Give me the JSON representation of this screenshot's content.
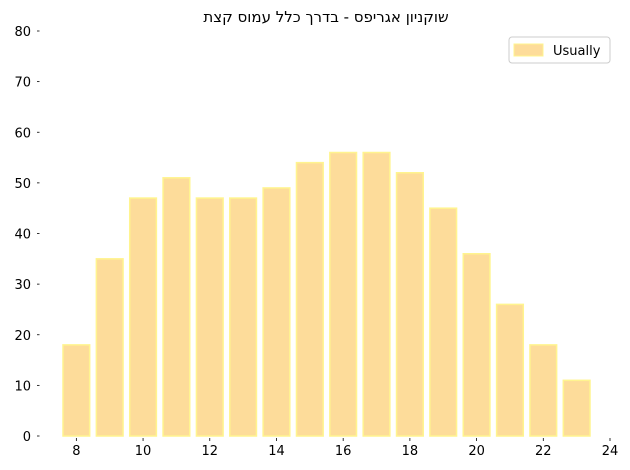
{
  "chart_data": {
    "type": "bar",
    "title": "שוקניון אגריפס  - בדרך כלל עמוס קצת",
    "xlabel": "",
    "ylabel": "",
    "x": [
      8,
      9,
      10,
      11,
      12,
      13,
      14,
      15,
      16,
      17,
      18,
      19,
      20,
      21,
      22,
      23
    ],
    "series": [
      {
        "name": "Usually",
        "values": [
          18,
          35,
          47,
          51,
          47,
          47,
          49,
          54,
          56,
          56,
          52,
          45,
          36,
          26,
          18,
          11
        ]
      }
    ],
    "xlim": [
      7,
      24
    ],
    "ylim": [
      0,
      80
    ],
    "x_ticks": [
      8,
      10,
      12,
      14,
      16,
      18,
      20,
      22,
      24
    ],
    "y_ticks": [
      0,
      10,
      20,
      30,
      40,
      50,
      60,
      70,
      80
    ],
    "legend_position": "top-right",
    "grid": false,
    "colors": {
      "bar_fill": "#fddc9a",
      "bar_edge": "#fff48f"
    }
  }
}
